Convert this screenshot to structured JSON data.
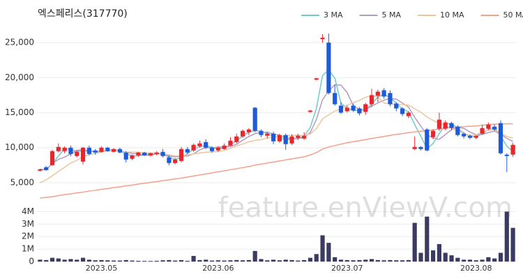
{
  "chart_data": {
    "type": "candlestick",
    "title": "엑스페리스(317770)",
    "watermark": "feature.enViewV.com",
    "categories": [
      null,
      null,
      null,
      null,
      null,
      null,
      null,
      null,
      null,
      null,
      "2023.05",
      null,
      null,
      null,
      null,
      null,
      null,
      null,
      null,
      null,
      null,
      null,
      null,
      null,
      null,
      null,
      null,
      null,
      null,
      "2023.06",
      null,
      null,
      null,
      null,
      null,
      null,
      null,
      null,
      null,
      null,
      null,
      null,
      null,
      null,
      null,
      null,
      null,
      null,
      null,
      null,
      "2023.07",
      null,
      null,
      null,
      null,
      null,
      null,
      null,
      null,
      null,
      null,
      null,
      null,
      null,
      null,
      null,
      null,
      null,
      null,
      null,
      null,
      "2023.08",
      null,
      null,
      null,
      null,
      null,
      null
    ],
    "open": [
      6700,
      7200,
      7500,
      9500,
      9500,
      10000,
      8800,
      8000,
      10000,
      9600,
      9400,
      10000,
      9400,
      9800,
      9300,
      8400,
      8900,
      9300,
      8900,
      9100,
      9400,
      8600,
      7800,
      8100,
      9800,
      9600,
      10200,
      10800,
      10000,
      9600,
      9800,
      10300,
      10800,
      11600,
      12200,
      15700,
      12400,
      11700,
      12000,
      10900,
      11800,
      10600,
      11400,
      11300,
      15100,
      19700,
      25500,
      25000,
      17800,
      16000,
      15200,
      16000,
      15600,
      15100,
      16200,
      17400,
      18200,
      17800,
      16300,
      15600,
      14500,
      9800,
      10100,
      12600,
      11500,
      12700,
      12700,
      13500,
      13000,
      12000,
      11700,
      11400,
      12000,
      12700,
      13000,
      13500,
      9000,
      9000
    ],
    "high": [
      7000,
      7400,
      9700,
      10600,
      10200,
      10300,
      9600,
      10100,
      10300,
      9800,
      10200,
      10100,
      9900,
      10000,
      9500,
      9000,
      9400,
      9400,
      9300,
      9500,
      9800,
      8900,
      8500,
      10100,
      10100,
      10600,
      11000,
      11200,
      10200,
      10200,
      10600,
      11500,
      12000,
      12600,
      12800,
      15800,
      12600,
      12200,
      12300,
      12000,
      12000,
      11900,
      12000,
      12200,
      15400,
      20000,
      26200,
      26300,
      19000,
      16500,
      16000,
      16300,
      15800,
      16400,
      18400,
      18300,
      18500,
      18200,
      16500,
      15800,
      15200,
      11600,
      10200,
      12800,
      12600,
      15000,
      13900,
      13700,
      13200,
      12200,
      11900,
      11800,
      13300,
      13600,
      13300,
      13900,
      9200,
      10700
    ],
    "low": [
      6600,
      6700,
      7400,
      9300,
      9200,
      8800,
      8600,
      7600,
      8900,
      9000,
      9300,
      9400,
      9300,
      9200,
      7900,
      8200,
      8700,
      8800,
      8700,
      8900,
      8600,
      7500,
      7600,
      7900,
      9100,
      9400,
      10000,
      9800,
      9300,
      9400,
      9700,
      10200,
      10600,
      11400,
      11800,
      12200,
      11500,
      11300,
      10500,
      10700,
      9700,
      10400,
      11100,
      11100,
      15000,
      19600,
      25000,
      17600,
      16000,
      14800,
      15000,
      15100,
      14600,
      14700,
      15800,
      16500,
      17000,
      15900,
      15200,
      14500,
      14200,
      9700,
      9600,
      9500,
      11200,
      12400,
      12500,
      12500,
      11600,
      11300,
      11200,
      11200,
      11900,
      12500,
      12400,
      9000,
      6500,
      8700
    ],
    "close": [
      6900,
      6800,
      9500,
      10100,
      10000,
      9100,
      9400,
      10000,
      9100,
      9300,
      10000,
      9500,
      9800,
      9300,
      8300,
      8900,
      9300,
      8900,
      9200,
      9300,
      8800,
      7800,
      8300,
      9800,
      9300,
      10400,
      10600,
      10000,
      9500,
      10000,
      10300,
      11000,
      11600,
      12400,
      12600,
      12400,
      11800,
      12000,
      10900,
      11800,
      10500,
      11600,
      11700,
      11700,
      15300,
      19900,
      25700,
      17800,
      16200,
      15000,
      15700,
      15300,
      14900,
      16200,
      17500,
      18000,
      17300,
      16200,
      15600,
      14800,
      15000,
      10100,
      9800,
      9600,
      12400,
      14000,
      13600,
      12800,
      11800,
      11600,
      11400,
      11700,
      12800,
      13300,
      12600,
      9200,
      8800,
      10400
    ],
    "volume": [
      150000,
      120000,
      300000,
      250000,
      150000,
      200000,
      150000,
      300000,
      150000,
      100000,
      120000,
      100000,
      80000,
      80000,
      120000,
      80000,
      60000,
      50000,
      50000,
      60000,
      100000,
      120000,
      80000,
      120000,
      60000,
      450000,
      120000,
      150000,
      80000,
      100000,
      80000,
      100000,
      120000,
      100000,
      120000,
      850000,
      200000,
      100000,
      150000,
      100000,
      150000,
      120000,
      80000,
      120000,
      300000,
      600000,
      2100000,
      1500000,
      350000,
      150000,
      120000,
      100000,
      120000,
      150000,
      200000,
      120000,
      100000,
      120000,
      100000,
      100000,
      120000,
      3100000,
      700000,
      3600000,
      900000,
      1400000,
      700000,
      500000,
      300000,
      150000,
      150000,
      100000,
      150000,
      350000,
      250000,
      700000,
      4000000,
      2700000
    ],
    "up_color": "#e8262e",
    "down_color": "#1f5bd8",
    "volume_color": "#3b3b62",
    "series": [
      {
        "name": "3 MA",
        "color": "#72c9c9",
        "values": [
          6900,
          6850,
          7730,
          8800,
          9870,
          9730,
          9500,
          9500,
          9500,
          9470,
          9470,
          9600,
          9770,
          9530,
          9130,
          8830,
          8830,
          8970,
          9130,
          9130,
          9100,
          8630,
          8300,
          8630,
          9130,
          9830,
          10100,
          10330,
          10030,
          9830,
          9930,
          10430,
          10970,
          11670,
          12200,
          12470,
          12270,
          12070,
          11570,
          11570,
          11070,
          11300,
          11270,
          11670,
          12900,
          15630,
          20300,
          21130,
          19900,
          16330,
          15630,
          15330,
          15300,
          15470,
          16200,
          17230,
          17600,
          17170,
          16370,
          15530,
          15130,
          13300,
          11630,
          9830,
          10600,
          12000,
          13330,
          13470,
          12730,
          12070,
          11600,
          11570,
          11970,
          12600,
          12900,
          11700,
          10200,
          9470
        ]
      },
      {
        "name": "5 MA",
        "color": "#b59bc2",
        "values": [
          6900,
          6850,
          7730,
          8330,
          8660,
          9100,
          9620,
          9720,
          9520,
          9380,
          9460,
          9580,
          9540,
          9580,
          9380,
          9160,
          9120,
          8940,
          8920,
          9120,
          9100,
          8800,
          8680,
          8800,
          8800,
          9120,
          9680,
          10020,
          9960,
          10100,
          10080,
          10160,
          10480,
          11060,
          11580,
          12000,
          12160,
          12240,
          11940,
          11780,
          11400,
          11320,
          11300,
          11460,
          12160,
          14040,
          16860,
          18080,
          18980,
          18920,
          17880,
          16000,
          15420,
          15420,
          15920,
          16380,
          16780,
          17040,
          16920,
          16380,
          15780,
          14340,
          13060,
          11860,
          11380,
          11180,
          11880,
          12560,
          12920,
          12760,
          12240,
          11860,
          11860,
          12160,
          12360,
          11920,
          11340,
          10860
        ]
      },
      {
        "name": "10 MA",
        "color": "#ecc79d",
        "values": [
          5000,
          5400,
          6000,
          6600,
          7200,
          7800,
          8200,
          8700,
          9000,
          9200,
          9330,
          9600,
          9630,
          9550,
          9380,
          9360,
          9350,
          9240,
          9250,
          9250,
          9130,
          8960,
          8810,
          8860,
          8960,
          9110,
          9240,
          9350,
          9380,
          9450,
          9600,
          9920,
          10250,
          10510,
          10840,
          11040,
          11160,
          11360,
          11500,
          11680,
          11700,
          11760,
          11770,
          11700,
          11970,
          12720,
          14110,
          14690,
          15220,
          15540,
          16060,
          16430,
          16750,
          17200,
          17420,
          17230,
          16390,
          16230,
          16170,
          16150,
          16080,
          15560,
          15050,
          14390,
          13880,
          13480,
          13110,
          12770,
          12390,
          12070,
          11710,
          11870,
          12170,
          12540,
          12560,
          12080,
          11600,
          11360
        ]
      },
      {
        "name": "50 MA",
        "color": "#f4a08b",
        "values": [
          2800,
          2900,
          3000,
          3150,
          3300,
          3400,
          3550,
          3650,
          3800,
          3900,
          4050,
          4150,
          4300,
          4400,
          4550,
          4650,
          4800,
          4900,
          5050,
          5150,
          5300,
          5400,
          5550,
          5650,
          5800,
          5950,
          6100,
          6250,
          6400,
          6550,
          6700,
          6850,
          7000,
          7150,
          7300,
          7500,
          7650,
          7800,
          7950,
          8100,
          8250,
          8400,
          8550,
          8700,
          8950,
          9300,
          9800,
          10100,
          10300,
          10500,
          10700,
          10850,
          11000,
          11150,
          11300,
          11450,
          11600,
          11750,
          11900,
          12000,
          12150,
          12250,
          12350,
          12400,
          12550,
          12650,
          12800,
          12900,
          12950,
          13000,
          13050,
          13100,
          13200,
          13300,
          13350,
          13350,
          13400,
          13400
        ]
      }
    ],
    "ylim": [
      2200,
      27600
    ],
    "yticks": [
      {
        "value": 5000,
        "label": "5,000"
      },
      {
        "value": 10000,
        "label": "10,000"
      },
      {
        "value": 15000,
        "label": "15,000"
      },
      {
        "value": 20000,
        "label": "20,000"
      },
      {
        "value": 25000,
        "label": "25,000"
      }
    ],
    "volume_ylim": [
      0,
      4300000
    ],
    "volume_yticks": [
      0,
      {
        "value": 1000000,
        "label": "1M"
      },
      {
        "value": 2000000,
        "label": "2M"
      },
      {
        "value": 3000000,
        "label": "3M"
      },
      {
        "value": 4000000,
        "label": "4M"
      }
    ],
    "grid": true,
    "legend": "top-right"
  }
}
